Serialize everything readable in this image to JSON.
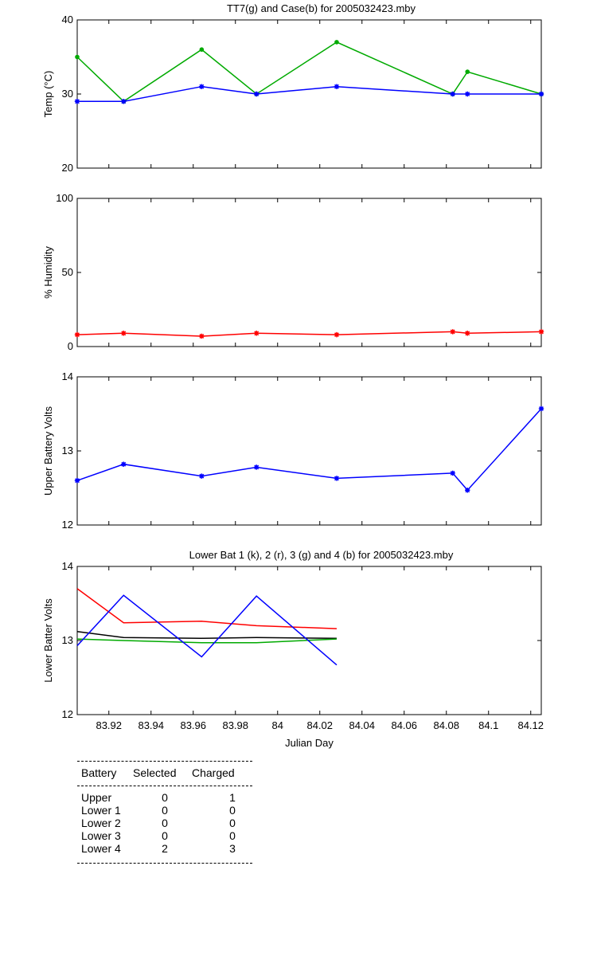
{
  "chart_data": [
    {
      "type": "line",
      "title": "TT7(g) and Case(b) for 2005032423.mby",
      "xlabel": "",
      "ylabel": "Temp (°C)",
      "xlim": [
        83.905,
        84.125
      ],
      "ylim": [
        20,
        40
      ],
      "yticks": [
        20,
        30,
        40
      ],
      "grid": false,
      "series": [
        {
          "color": "#00aa00",
          "marker": "dot",
          "x": [
            83.905,
            83.927,
            83.964,
            83.99,
            84.028,
            84.083,
            84.09,
            84.125
          ],
          "y": [
            35,
            29,
            36,
            30,
            37,
            30,
            33,
            30
          ]
        },
        {
          "color": "#0000ff",
          "marker": "star",
          "x": [
            83.905,
            83.927,
            83.964,
            83.99,
            84.028,
            84.083,
            84.09,
            84.125
          ],
          "y": [
            29,
            29,
            31,
            30,
            31,
            30,
            30,
            30
          ]
        }
      ]
    },
    {
      "type": "line",
      "title": "",
      "xlabel": "",
      "ylabel": "% Humidity",
      "xlim": [
        83.905,
        84.125
      ],
      "ylim": [
        0,
        100
      ],
      "yticks": [
        0,
        50,
        100
      ],
      "grid": false,
      "series": [
        {
          "color": "#ff0000",
          "marker": "star",
          "x": [
            83.905,
            83.927,
            83.964,
            83.99,
            84.028,
            84.083,
            84.09,
            84.125
          ],
          "y": [
            8,
            9,
            7,
            9,
            8,
            10,
            9,
            10
          ]
        }
      ]
    },
    {
      "type": "line",
      "title": "",
      "xlabel": "",
      "ylabel": "Upper Battery Volts",
      "xlim": [
        83.905,
        84.125
      ],
      "ylim": [
        12,
        14
      ],
      "yticks": [
        12,
        13,
        14
      ],
      "grid": false,
      "series": [
        {
          "color": "#0000ff",
          "marker": "star",
          "x": [
            83.905,
            83.927,
            83.964,
            83.99,
            84.028,
            84.083,
            84.09,
            84.125
          ],
          "y": [
            12.6,
            12.82,
            12.66,
            12.78,
            12.63,
            12.7,
            12.47,
            13.57
          ]
        }
      ]
    },
    {
      "type": "line",
      "title": "Lower Bat 1 (k), 2 (r), 3 (g) and 4 (b) for 2005032423.mby",
      "xlabel": "Julian Day",
      "ylabel": "Lower Batter Volts",
      "xlim": [
        83.905,
        84.125
      ],
      "ylim": [
        12,
        14
      ],
      "yticks": [
        12,
        13,
        14
      ],
      "xticks": [
        83.92,
        83.94,
        83.96,
        83.98,
        84,
        84.02,
        84.04,
        84.06,
        84.08,
        84.1,
        84.12
      ],
      "xticklabels": [
        "83.92",
        "83.94",
        "83.96",
        "83.98",
        "84",
        "84.02",
        "84.04",
        "84.06",
        "84.08",
        "84.1",
        "84.12"
      ],
      "grid": false,
      "series": [
        {
          "color": "#000000",
          "marker": "none",
          "x": [
            83.905,
            83.927,
            83.964,
            83.99,
            84.028
          ],
          "y": [
            13.12,
            13.04,
            13.03,
            13.04,
            13.03
          ]
        },
        {
          "color": "#ff0000",
          "marker": "none",
          "x": [
            83.905,
            83.927,
            83.964,
            83.99,
            84.028
          ],
          "y": [
            13.7,
            13.24,
            13.26,
            13.2,
            13.16
          ]
        },
        {
          "color": "#00aa00",
          "marker": "none",
          "x": [
            83.905,
            83.927,
            83.964,
            83.99,
            84.028
          ],
          "y": [
            13.02,
            13.0,
            12.97,
            12.97,
            13.02
          ]
        },
        {
          "color": "#0000ff",
          "marker": "none",
          "x": [
            83.905,
            83.927,
            83.964,
            83.99,
            84.028
          ],
          "y": [
            12.93,
            13.61,
            12.78,
            13.6,
            12.67
          ]
        }
      ]
    }
  ],
  "battery_table": {
    "headers": [
      "Battery",
      "Selected",
      "Charged"
    ],
    "rows": [
      {
        "battery": "Upper",
        "selected": "0",
        "charged": "1"
      },
      {
        "battery": "Lower 1",
        "selected": "0",
        "charged": "0"
      },
      {
        "battery": "Lower 2",
        "selected": "0",
        "charged": "0"
      },
      {
        "battery": "Lower 3",
        "selected": "0",
        "charged": "0"
      },
      {
        "battery": "Lower 4",
        "selected": "2",
        "charged": "3"
      }
    ]
  }
}
